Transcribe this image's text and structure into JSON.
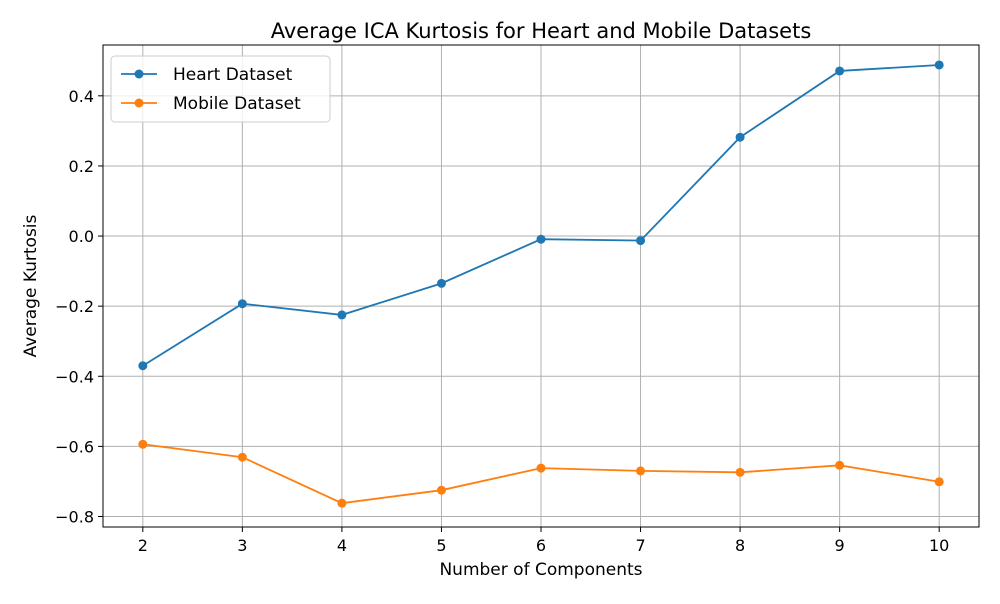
{
  "chart_data": {
    "type": "line",
    "title": "Average ICA Kurtosis for Heart and Mobile Datasets",
    "xlabel": "Number of Components",
    "ylabel": "Average Kurtosis",
    "x": [
      2,
      3,
      4,
      5,
      6,
      7,
      8,
      9,
      10
    ],
    "xlim": [
      1.6,
      10.4
    ],
    "ylim": [
      -0.83,
      0.545
    ],
    "x_ticks": [
      2,
      3,
      4,
      5,
      6,
      7,
      8,
      9,
      10
    ],
    "y_ticks": [
      -0.8,
      -0.6,
      -0.4,
      -0.2,
      0.0,
      0.2,
      0.4
    ],
    "y_tick_labels": [
      "−0.8",
      "−0.6",
      "−0.4",
      "−0.2",
      "0.0",
      "0.2",
      "0.4"
    ],
    "grid": true,
    "legend_position": "upper-left",
    "series": [
      {
        "name": "Heart Dataset",
        "color": "#1f77b4",
        "marker": "circle",
        "values": [
          -0.37,
          -0.193,
          -0.225,
          -0.135,
          -0.009,
          -0.013,
          0.282,
          0.471,
          0.488
        ]
      },
      {
        "name": "Mobile Dataset",
        "color": "#ff7f0e",
        "marker": "circle",
        "values": [
          -0.594,
          -0.631,
          -0.762,
          -0.725,
          -0.662,
          -0.67,
          -0.674,
          -0.654,
          -0.701
        ]
      }
    ]
  }
}
